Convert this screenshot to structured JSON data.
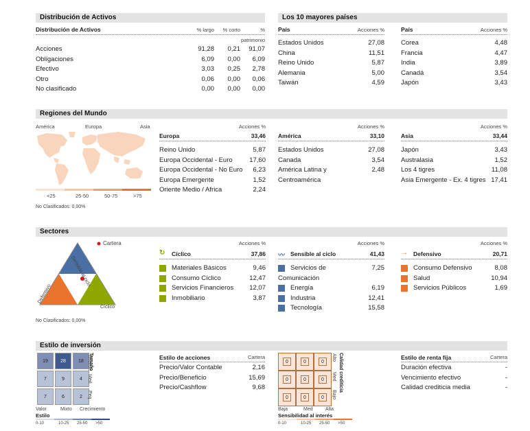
{
  "asset_alloc": {
    "title": "Distribución de Activos",
    "subtitle": "Distribución de Activos",
    "col_long": "% largo",
    "col_short": "% corto",
    "col_pct": "%",
    "col_pct2": "patrimonio",
    "rows": [
      {
        "label": "Acciones",
        "long": "91,28",
        "short": "0,21",
        "net": "91,07"
      },
      {
        "label": "Obligaciones",
        "long": "6,09",
        "short": "0,00",
        "net": "6,09"
      },
      {
        "label": "Efectivo",
        "long": "3,03",
        "short": "0,25",
        "net": "2,78"
      },
      {
        "label": "Otro",
        "long": "0,06",
        "short": "0,00",
        "net": "0,06"
      },
      {
        "label": "No clasificado",
        "long": "0,00",
        "short": "0,00",
        "net": "0,00"
      }
    ]
  },
  "top_countries": {
    "title": "Los 10 mayores países",
    "col_country": "País",
    "col_pct": "Acciones %",
    "left": [
      {
        "name": "Estados Unidos",
        "value": "27,08"
      },
      {
        "name": "China",
        "value": "11,51"
      },
      {
        "name": "Reino Unido",
        "value": "5,87"
      },
      {
        "name": "Alemania",
        "value": "5,00"
      },
      {
        "name": "Taiwán",
        "value": "4,59"
      }
    ],
    "right": [
      {
        "name": "Corea",
        "value": "4,48"
      },
      {
        "name": "Francia",
        "value": "4,47"
      },
      {
        "name": "India",
        "value": "3,89"
      },
      {
        "name": "Canadá",
        "value": "3,54"
      },
      {
        "name": "Japón",
        "value": "3,43"
      }
    ]
  },
  "regions": {
    "title": "Regiones del Mundo",
    "map_labels": [
      "América",
      "Europa",
      "Asia"
    ],
    "legend": [
      "<25",
      "25-50",
      "50-75",
      ">75"
    ],
    "legend_colors": [
      "#fbe3d3",
      "#f7c6a5",
      "#f0a06a",
      "#e8742e"
    ],
    "unclassified": "No Clasificados: 0,00%",
    "col_pct": "Acciones %",
    "groups": [
      {
        "name": "Europa",
        "total": "33,46",
        "items": [
          {
            "name": "Reino Unido",
            "value": "5,87"
          },
          {
            "name": "Europa Occidental - Euro",
            "value": "17,60"
          },
          {
            "name": "Europa Occidental - No Euro",
            "value": "6,23"
          },
          {
            "name": "Europa Emergente",
            "value": "1,52"
          },
          {
            "name": "Oriente Medio / Africa",
            "value": "2,24"
          }
        ]
      },
      {
        "name": "América",
        "total": "33,10",
        "items": [
          {
            "name": "Estados Unidos",
            "value": "27,08"
          },
          {
            "name": "Canada",
            "value": "3,54"
          },
          {
            "name": "América Latina y",
            "value": "2,48"
          },
          {
            "name": "Centroamérica",
            "value": ""
          }
        ]
      },
      {
        "name": "Asia",
        "total": "33,44",
        "items": [
          {
            "name": "Japón",
            "value": "3,43"
          },
          {
            "name": "Australasia",
            "value": "1,52"
          },
          {
            "name": "Los 4 tigres",
            "value": "11,08"
          },
          {
            "name": "Asia Emergente - Ex. 4 tigres",
            "value": "17,41"
          }
        ]
      }
    ]
  },
  "sectors": {
    "title": "Sectores",
    "legend_label": "Cartera",
    "triangle_labels": {
      "sensitive": "Sensible al ciclo",
      "defensive": "Defensivo",
      "cyclical": "Cíclico"
    },
    "unclassified": "No Clasificados: 0,00%",
    "col_pct": "Acciones %",
    "groups": [
      {
        "name": "Cíclico",
        "total": "37,86",
        "color": "#8fa800",
        "items": [
          {
            "name": "Materiales Básicos",
            "value": "9,46"
          },
          {
            "name": "Consumo Cíclico",
            "value": "12,47"
          },
          {
            "name": "Servicios Financieros",
            "value": "12,07"
          },
          {
            "name": "Inmobiliario",
            "value": "3,87"
          }
        ]
      },
      {
        "name": "Sensible al ciclo",
        "total": "41,43",
        "color": "#4a6fa5",
        "items": [
          {
            "name": "Servicios de",
            "value": "7,25"
          },
          {
            "name": "Comunicación",
            "value": ""
          },
          {
            "name": "Energía",
            "value": "6,19"
          },
          {
            "name": "Industria",
            "value": "12,41"
          },
          {
            "name": "Tecnología",
            "value": "15,58"
          }
        ]
      },
      {
        "name": "Defensivo",
        "total": "20,71",
        "color": "#e8742e",
        "items": [
          {
            "name": "Consumo Defensivo",
            "value": "8,08"
          },
          {
            "name": "Salud",
            "value": "10,94"
          },
          {
            "name": "Servicios Públicos",
            "value": "1,69"
          }
        ]
      }
    ]
  },
  "style": {
    "title": "Estilo de inversión",
    "equity_grid": [
      "19",
      "28",
      "18",
      "7",
      "9",
      "4",
      "7",
      "6",
      "2"
    ],
    "equity_colors": [
      "#7f8fb3",
      "#3f5a8e",
      "#7f8fb3",
      "#b8c2d6",
      "#b8c2d6",
      "#b8c2d6",
      "#b8c2d6",
      "#b8c2d6",
      "#b8c2d6"
    ],
    "size_labels": [
      "Tamaño",
      "Grande",
      "Med",
      "Peq"
    ],
    "x_labels": [
      "Valor",
      "Mixto",
      "Crecimiento"
    ],
    "x_title": "Estilo",
    "scale": [
      "0-10",
      "10-25",
      "25-50",
      ">50"
    ],
    "equity_table": {
      "title": "Estilo de acciones",
      "col": "Cartera",
      "rows": [
        {
          "name": "Precio/Valor Contable",
          "value": "2,16"
        },
        {
          "name": "Precio/Beneficio",
          "value": "15,69"
        },
        {
          "name": "Precio/Cashflow",
          "value": "9,68"
        }
      ]
    },
    "fi_grid": [
      "0",
      "0",
      "0",
      "0",
      "0",
      "0",
      "0",
      "0",
      "0"
    ],
    "fi_side": [
      "Calidad crediticia",
      "Alto",
      "Med",
      "Bajo"
    ],
    "fi_x": [
      "Baja",
      "Med",
      "Alta"
    ],
    "fi_x_title": "Sensibilidad al interés",
    "fi_table": {
      "title": "Estilo de renta fija",
      "col": "Cartera",
      "rows": [
        {
          "name": "Duración efectiva",
          "value": "-"
        },
        {
          "name": "Vencimiento efectivo",
          "value": "-"
        },
        {
          "name": "Calidad crediticia media",
          "value": "-"
        }
      ]
    }
  }
}
